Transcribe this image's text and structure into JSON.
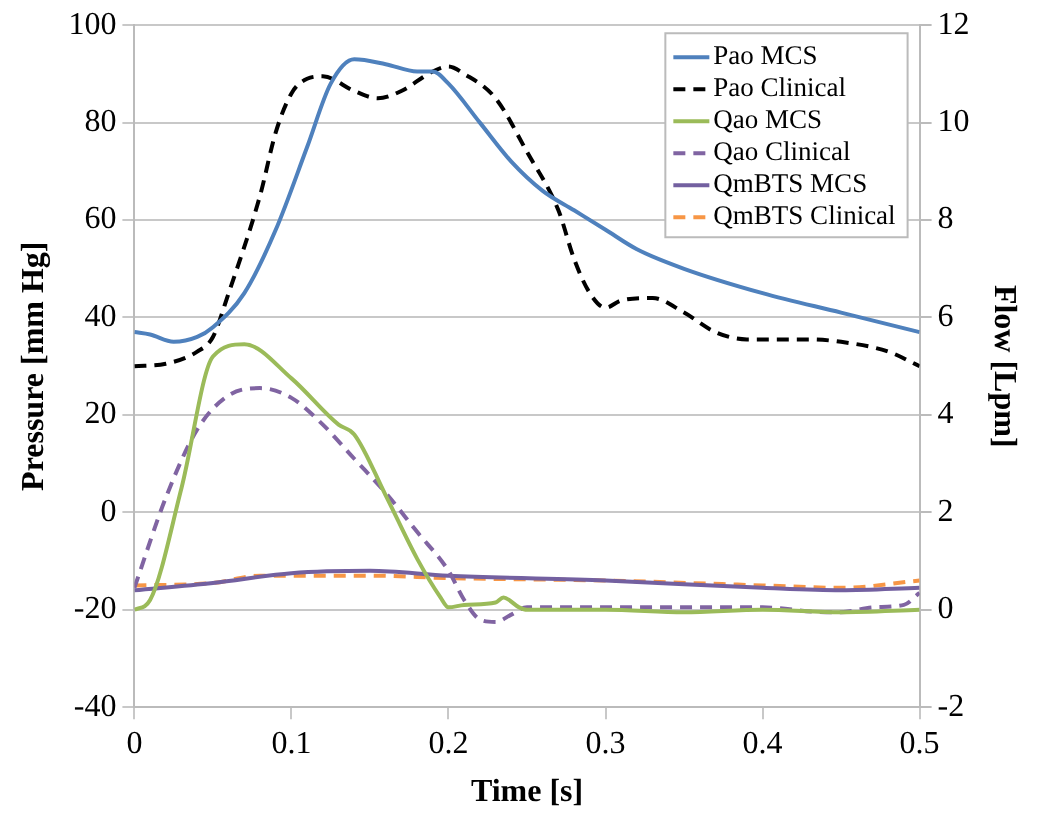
{
  "chart_data": {
    "type": "line",
    "xlabel": "Time [s]",
    "ylabel": "Pressure [mm Hg]",
    "y2label": "Flow [Lpm]",
    "xlim": [
      0,
      0.5
    ],
    "xticks": [
      0,
      0.1,
      0.2,
      0.3,
      0.4,
      0.5
    ],
    "ylim": [
      -40,
      100
    ],
    "yticks": [
      -40,
      -20,
      0,
      20,
      40,
      60,
      80,
      100
    ],
    "y2lim": [
      -2,
      12
    ],
    "y2ticks": [
      -2,
      0,
      2,
      4,
      6,
      8,
      10,
      12
    ],
    "grid": "y",
    "legend": "top right",
    "marker": "none",
    "series": [
      {
        "name": "Pao MCS",
        "color": "#4f81bd",
        "line_style": "solid",
        "x": [
          0,
          0.01,
          0.025,
          0.04,
          0.05,
          0.07,
          0.09,
          0.11,
          0.125,
          0.14,
          0.16,
          0.18,
          0.19,
          0.2,
          0.22,
          0.24,
          0.26,
          0.28,
          0.3,
          0.32,
          0.35,
          0.4,
          0.45,
          0.5
        ],
        "values": [
          37,
          36.5,
          35,
          36,
          38,
          45,
          58,
          75,
          88,
          93,
          92,
          90.5,
          90.5,
          88,
          80,
          72,
          66,
          62,
          58,
          54,
          50,
          45,
          41,
          37
        ]
      },
      {
        "name": "Pao Clinical",
        "color": "#000000",
        "line_style": "dashed",
        "x": [
          0,
          0.02,
          0.04,
          0.05,
          0.06,
          0.08,
          0.09,
          0.1,
          0.11,
          0.12,
          0.14,
          0.155,
          0.17,
          0.19,
          0.2,
          0.21,
          0.23,
          0.25,
          0.27,
          0.28,
          0.29,
          0.3,
          0.31,
          0.33,
          0.35,
          0.37,
          0.39,
          0.43,
          0.45,
          0.48,
          0.5
        ],
        "values": [
          30,
          30.5,
          33,
          36,
          45,
          65,
          78,
          86,
          89,
          89.5,
          86.5,
          85,
          86.5,
          90.5,
          91.5,
          90,
          85,
          74,
          62,
          52,
          45,
          42,
          43.5,
          44,
          41,
          37,
          35.5,
          35.5,
          35,
          33,
          30
        ]
      },
      {
        "name": "Qao MCS",
        "color": "#9bbb59",
        "line_style": "solid",
        "axis": "y2",
        "x": [
          0,
          0.01,
          0.03,
          0.05,
          0.07,
          0.1,
          0.13,
          0.14,
          0.16,
          0.18,
          0.195,
          0.2,
          0.21,
          0.23,
          0.235,
          0.245,
          0.25,
          0.3,
          0.35,
          0.4,
          0.45,
          0.5
        ],
        "values": [
          0,
          0.2,
          2.5,
          5.2,
          5.45,
          4.75,
          3.8,
          3.6,
          2.35,
          1.05,
          0.25,
          0.05,
          0.1,
          0.15,
          0.25,
          0.05,
          0,
          0,
          -0.05,
          0,
          -0.05,
          0
        ]
      },
      {
        "name": "Qao Clinical",
        "color": "#8064a2",
        "line_style": "dashed",
        "axis": "y2",
        "x": [
          0,
          0.02,
          0.04,
          0.06,
          0.08,
          0.1,
          0.12,
          0.14,
          0.16,
          0.18,
          0.2,
          0.21,
          0.22,
          0.23,
          0.24,
          0.25,
          0.3,
          0.4,
          0.44,
          0.45,
          0.47,
          0.49,
          0.5
        ],
        "values": [
          0.45,
          2.3,
          3.7,
          4.4,
          4.55,
          4.35,
          3.8,
          3.1,
          2.4,
          1.6,
          0.8,
          0.2,
          -0.2,
          -0.25,
          -0.1,
          0.05,
          0.05,
          0.05,
          -0.05,
          -0.05,
          0.05,
          0.1,
          0.35
        ]
      },
      {
        "name": "QmBTS MCS",
        "color": "#7360a0",
        "line_style": "solid",
        "axis": "y2",
        "x": [
          0,
          0.05,
          0.1,
          0.15,
          0.2,
          0.3,
          0.4,
          0.45,
          0.5
        ],
        "values": [
          0.4,
          0.55,
          0.75,
          0.8,
          0.7,
          0.6,
          0.45,
          0.4,
          0.45
        ]
      },
      {
        "name": "QmBTS Clinical",
        "color": "#f79646",
        "line_style": "dashed",
        "axis": "y2",
        "x": [
          0,
          0.05,
          0.08,
          0.15,
          0.2,
          0.3,
          0.4,
          0.45,
          0.5
        ],
        "values": [
          0.5,
          0.55,
          0.7,
          0.7,
          0.65,
          0.6,
          0.5,
          0.45,
          0.6
        ]
      }
    ]
  }
}
